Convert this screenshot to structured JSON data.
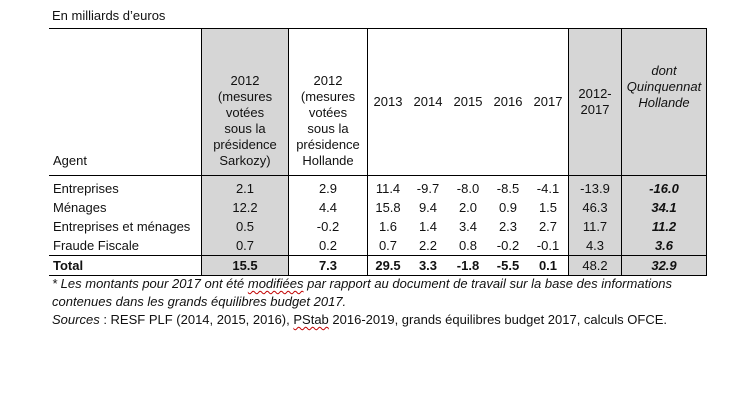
{
  "caption": "En milliards d’euros",
  "headers": {
    "agent": "Agent",
    "sarkozy": [
      "2012",
      "(mesures",
      "votées",
      "sous la",
      "présidence",
      "Sarkozy)"
    ],
    "hollande": [
      "2012",
      "(mesures",
      "votées",
      "sous la",
      "présidence",
      "Hollande"
    ],
    "y2013": "2013",
    "y2014": "2014",
    "y2015": "2015",
    "y2016": "2016",
    "y2017": "2017",
    "total": [
      "2012-",
      "2017"
    ],
    "dont": [
      "dont",
      "Quinquennat",
      "Hollande"
    ]
  },
  "rows": [
    {
      "agent": "Entreprises",
      "sarkozy": "2.1",
      "hollande": "2.9",
      "y2013": "11.4",
      "y2014": "-9.7",
      "y2015": "-8.0",
      "y2016": "-8.5",
      "y2017": "-4.1",
      "total": "-13.9",
      "dont": "-16.0"
    },
    {
      "agent": "Ménages",
      "sarkozy": "12.2",
      "hollande": "4.4",
      "y2013": "15.8",
      "y2014": "9.4",
      "y2015": "2.0",
      "y2016": "0.9",
      "y2017": "1.5",
      "total": "46.3",
      "dont": "34.1"
    },
    {
      "agent": "Entreprises et ménages",
      "sarkozy": "0.5",
      "hollande": "-0.2",
      "y2013": "1.6",
      "y2014": "1.4",
      "y2015": "3.4",
      "y2016": "2.3",
      "y2017": "2.7",
      "total": "11.7",
      "dont": "11.2"
    },
    {
      "agent": "Fraude Fiscale",
      "sarkozy": "0.7",
      "hollande": "0.2",
      "y2013": "0.7",
      "y2014": "2.2",
      "y2015": "0.8",
      "y2016": "-0.2",
      "y2017": "-0.1",
      "total": "4.3",
      "dont": "3.6"
    }
  ],
  "total_row": {
    "agent": "Total",
    "sarkozy": "15.5",
    "hollande": "7.3",
    "y2013": "29.5",
    "y2014": "3.3",
    "y2015": "-1.8",
    "y2016": "-5.5",
    "y2017": "0.1",
    "total": "48.2",
    "dont": "32.9"
  },
  "footnote": {
    "note_part1": "* Les montants pour 2017 ont été ",
    "note_squiggle": "modifiées",
    "note_part2": " par rapport au document de travail sur la base des informations contenues dans les grands équilibres budget 2017.",
    "sources_label": "Sources",
    "sources_part1": " : RESF PLF (2014, 2015, 2016), ",
    "sources_squiggle": "PStab",
    "sources_part2": " 2016-2019, grands équilibres budget 2017, calculs OFCE."
  },
  "colors": {
    "shade": "#d6d6d6"
  }
}
